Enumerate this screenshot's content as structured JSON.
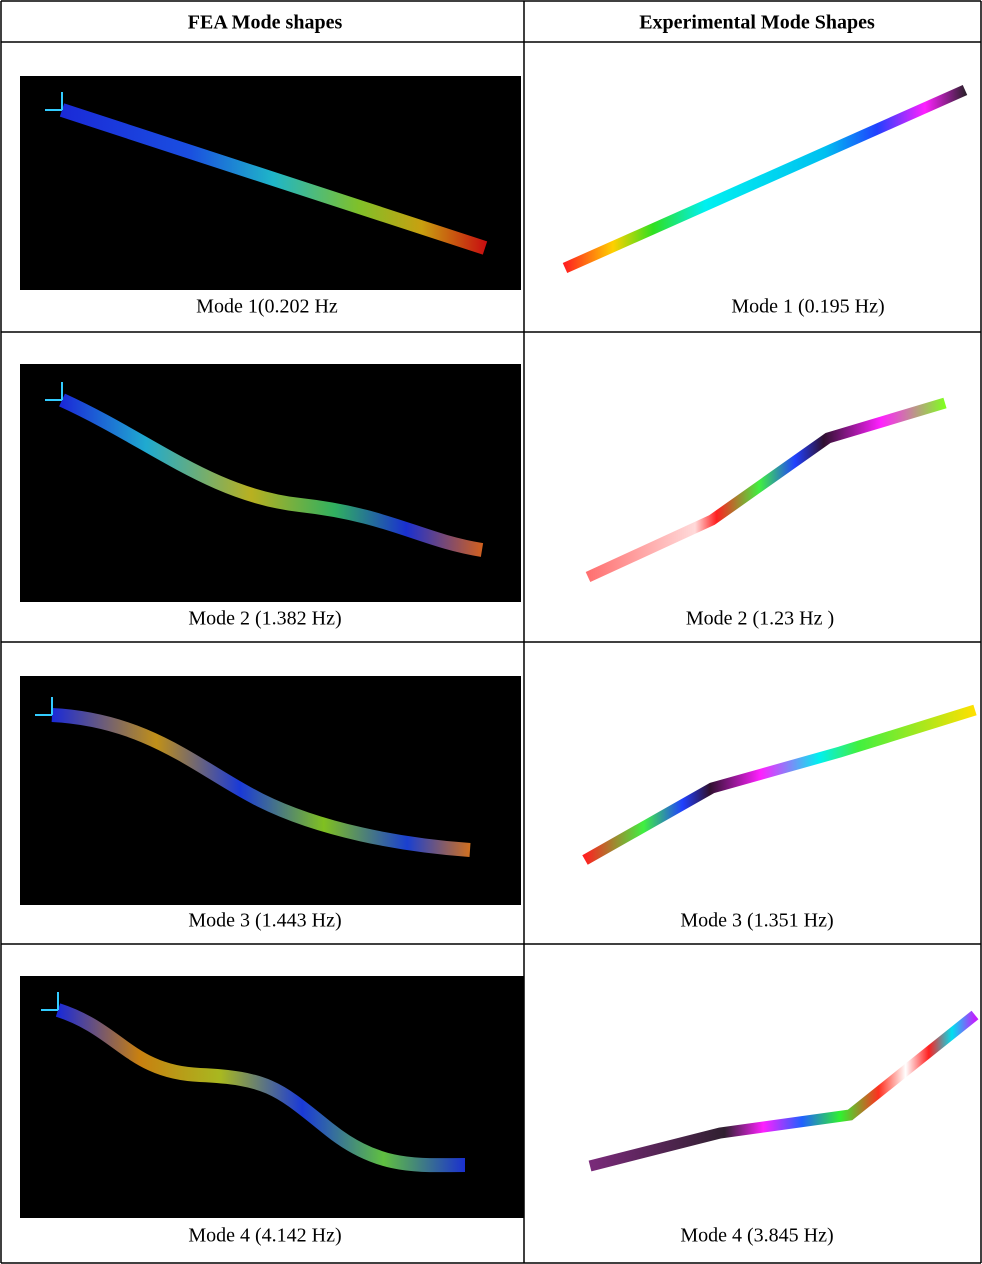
{
  "table": {
    "header": [
      "FEA Mode shapes",
      "Experimental Mode Shapes"
    ],
    "rows": [
      [
        "Mode 1(0.202 Hz",
        "Mode 1 (0.195 Hz)"
      ],
      [
        "Mode 2 (1.382 Hz)",
        "Mode 2 (1.23 Hz )"
      ],
      [
        "Mode 3 (1.443 Hz)",
        "Mode 3 (1.351 Hz)"
      ],
      [
        "Mode 4 (4.142 Hz)",
        "Mode 4 (3.845 Hz)"
      ]
    ]
  }
}
